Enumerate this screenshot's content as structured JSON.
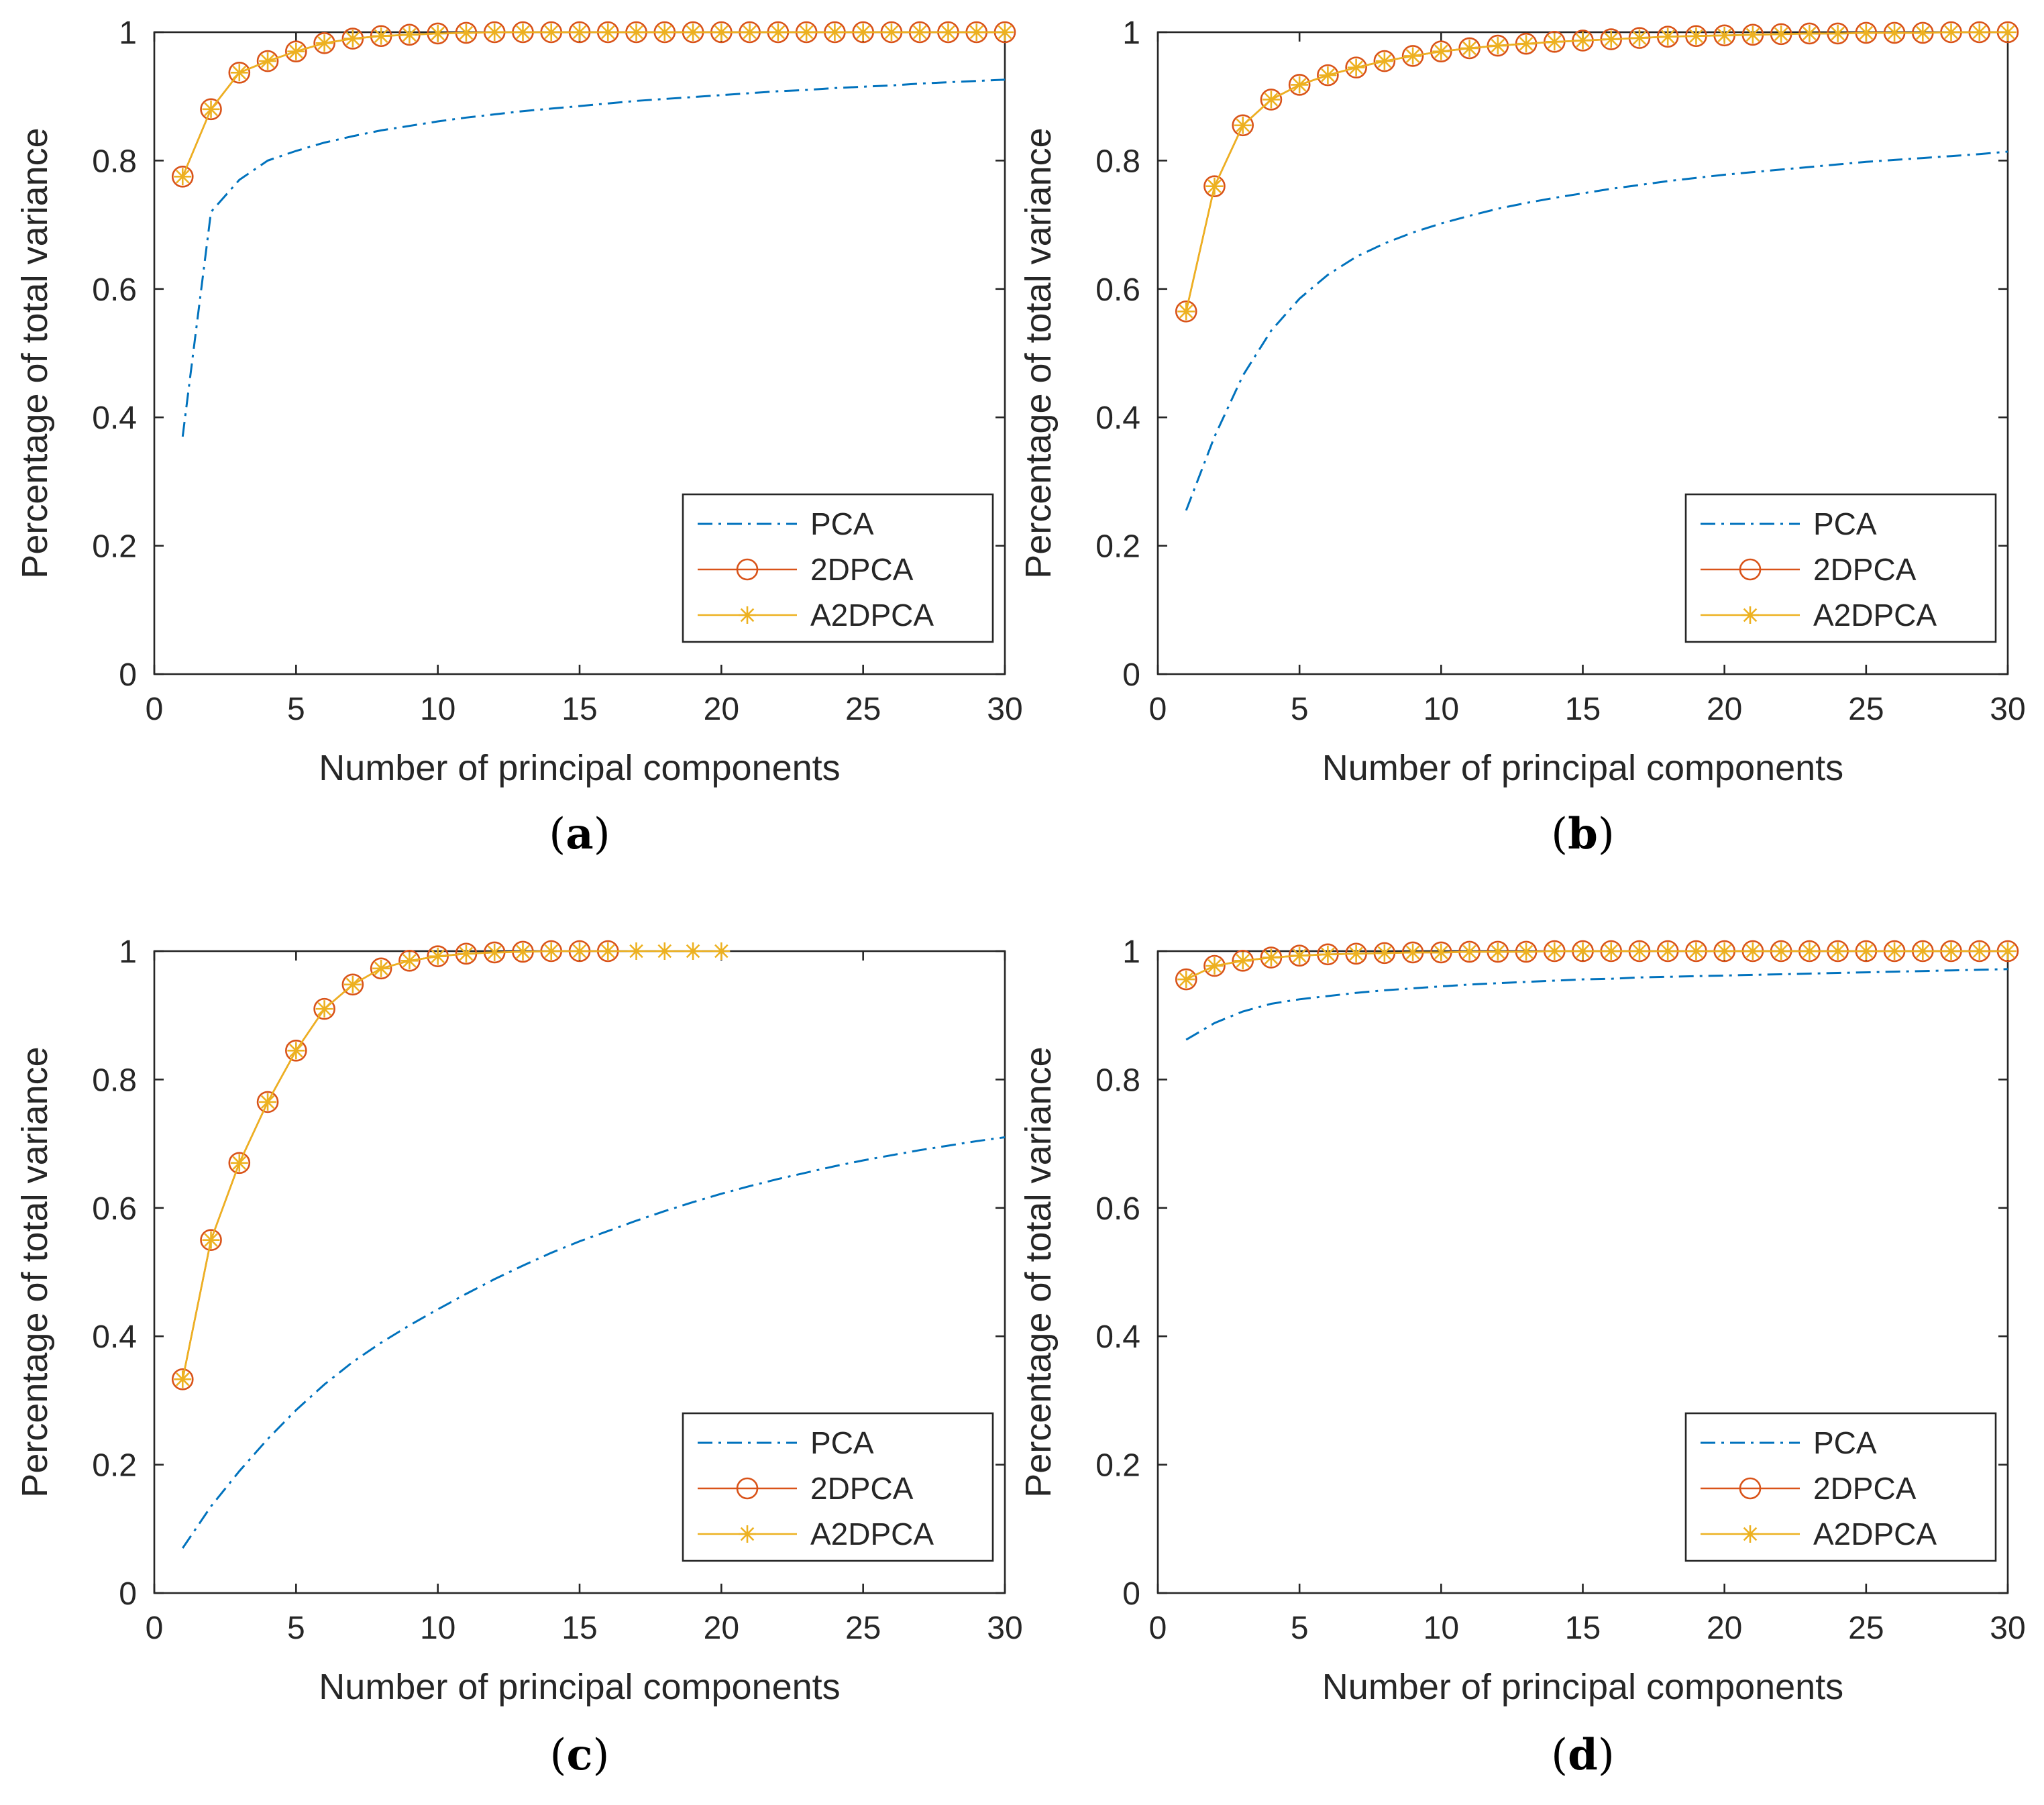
{
  "colors": {
    "pca": "#0072bd",
    "twodpca": "#d95319",
    "a2dpca": "#edb120",
    "axes": "#262626"
  },
  "legend_position": "bottom-right",
  "chart_data": [
    {
      "id": "a",
      "type": "line",
      "caption_letter": "a",
      "xlabel": "Number of principal components",
      "ylabel": "Percentage of total variance",
      "xlim": [
        0,
        30
      ],
      "ylim": [
        0,
        1
      ],
      "xticks": [
        "0",
        "5",
        "10",
        "15",
        "20",
        "25",
        "30"
      ],
      "yticks": [
        "0",
        "0.2",
        "0.4",
        "0.6",
        "0.8",
        "1"
      ],
      "legend": [
        "PCA",
        "2DPCA",
        "A2DPCA"
      ],
      "series": [
        {
          "name": "PCA",
          "style": "dash-dot",
          "x": [
            1,
            2,
            3,
            4,
            5,
            6,
            7,
            8,
            9,
            10,
            11,
            12,
            13,
            14,
            15,
            16,
            17,
            18,
            19,
            20,
            21,
            22,
            23,
            24,
            25,
            26,
            27,
            28,
            29,
            30
          ],
          "values": [
            0.37,
            0.72,
            0.77,
            0.8,
            0.815,
            0.828,
            0.838,
            0.847,
            0.854,
            0.861,
            0.867,
            0.872,
            0.877,
            0.881,
            0.885,
            0.889,
            0.893,
            0.896,
            0.899,
            0.902,
            0.905,
            0.908,
            0.91,
            0.913,
            0.915,
            0.917,
            0.92,
            0.922,
            0.924,
            0.926
          ]
        },
        {
          "name": "2DPCA",
          "style": "circle",
          "x": [
            1,
            2,
            3,
            4,
            5,
            6,
            7,
            8,
            9,
            10,
            11,
            12,
            13,
            14,
            15,
            16,
            17,
            18,
            19,
            20,
            21,
            22,
            23,
            24,
            25,
            26,
            27,
            28,
            29,
            30
          ],
          "values": [
            0.775,
            0.88,
            0.937,
            0.955,
            0.97,
            0.983,
            0.99,
            0.994,
            0.996,
            0.998,
            0.999,
            1,
            1,
            1,
            1,
            1,
            1,
            1,
            1,
            1,
            1,
            1,
            1,
            1,
            1,
            1,
            1,
            1,
            1,
            1
          ]
        },
        {
          "name": "A2DPCA",
          "style": "asterisk",
          "x": [
            1,
            2,
            3,
            4,
            5,
            6,
            7,
            8,
            9,
            10,
            11,
            12,
            13,
            14,
            15,
            16,
            17,
            18,
            19,
            20,
            21,
            22,
            23,
            24,
            25,
            26,
            27,
            28,
            29,
            30
          ],
          "values": [
            0.775,
            0.88,
            0.937,
            0.955,
            0.97,
            0.983,
            0.99,
            0.994,
            0.996,
            0.998,
            0.999,
            1,
            1,
            1,
            1,
            1,
            1,
            1,
            1,
            1,
            1,
            1,
            1,
            1,
            1,
            1,
            1,
            1,
            1,
            1
          ]
        }
      ]
    },
    {
      "id": "b",
      "type": "line",
      "caption_letter": "b",
      "xlabel": "Number of principal components",
      "ylabel": "Percentage of total variance",
      "xlim": [
        0,
        30
      ],
      "ylim": [
        0,
        1
      ],
      "xticks": [
        "0",
        "5",
        "10",
        "15",
        "20",
        "25",
        "30"
      ],
      "yticks": [
        "0",
        "0.2",
        "0.4",
        "0.6",
        "0.8",
        "1"
      ],
      "legend": [
        "PCA",
        "2DPCA",
        "A2DPCA"
      ],
      "series": [
        {
          "name": "PCA",
          "style": "dash-dot",
          "x": [
            1,
            2,
            3,
            4,
            5,
            6,
            7,
            8,
            9,
            10,
            11,
            12,
            13,
            14,
            15,
            16,
            17,
            18,
            19,
            20,
            21,
            22,
            23,
            24,
            25,
            26,
            27,
            28,
            29,
            30
          ],
          "values": [
            0.255,
            0.37,
            0.465,
            0.535,
            0.585,
            0.622,
            0.65,
            0.671,
            0.688,
            0.702,
            0.714,
            0.725,
            0.734,
            0.742,
            0.749,
            0.756,
            0.762,
            0.768,
            0.773,
            0.778,
            0.782,
            0.786,
            0.79,
            0.794,
            0.798,
            0.801,
            0.804,
            0.807,
            0.81,
            0.814
          ]
        },
        {
          "name": "2DPCA",
          "style": "circle",
          "x": [
            1,
            2,
            3,
            4,
            5,
            6,
            7,
            8,
            9,
            10,
            11,
            12,
            13,
            14,
            15,
            16,
            17,
            18,
            19,
            20,
            21,
            22,
            23,
            24,
            25,
            26,
            27,
            28,
            29,
            30
          ],
          "values": [
            0.565,
            0.76,
            0.855,
            0.895,
            0.918,
            0.933,
            0.945,
            0.955,
            0.963,
            0.97,
            0.975,
            0.979,
            0.982,
            0.985,
            0.987,
            0.989,
            0.991,
            0.993,
            0.994,
            0.995,
            0.996,
            0.997,
            0.998,
            0.998,
            0.999,
            0.999,
            0.999,
            1,
            1,
            1
          ]
        },
        {
          "name": "A2DPCA",
          "style": "asterisk",
          "x": [
            1,
            2,
            3,
            4,
            5,
            6,
            7,
            8,
            9,
            10,
            11,
            12,
            13,
            14,
            15,
            16,
            17,
            18,
            19,
            20,
            21,
            22,
            23,
            24,
            25,
            26,
            27,
            28,
            29,
            30
          ],
          "values": [
            0.565,
            0.76,
            0.855,
            0.895,
            0.918,
            0.933,
            0.945,
            0.955,
            0.963,
            0.97,
            0.975,
            0.979,
            0.982,
            0.985,
            0.987,
            0.989,
            0.991,
            0.993,
            0.994,
            0.995,
            0.996,
            0.997,
            0.998,
            0.998,
            0.999,
            0.999,
            0.999,
            1,
            1,
            1
          ]
        }
      ]
    },
    {
      "id": "c",
      "type": "line",
      "caption_letter": "c",
      "xlabel": "Number of principal components",
      "ylabel": "Percentage of total variance",
      "xlim": [
        0,
        30
      ],
      "ylim": [
        0,
        1
      ],
      "xticks": [
        "0",
        "5",
        "10",
        "15",
        "20",
        "25",
        "30"
      ],
      "yticks": [
        "0",
        "0.2",
        "0.4",
        "0.6",
        "0.8",
        "1"
      ],
      "legend": [
        "PCA",
        "2DPCA",
        "A2DPCA"
      ],
      "series": [
        {
          "name": "PCA",
          "style": "dash-dot",
          "x": [
            1,
            2,
            3,
            4,
            5,
            6,
            7,
            8,
            9,
            10,
            11,
            12,
            13,
            14,
            15,
            16,
            17,
            18,
            19,
            20,
            21,
            22,
            23,
            24,
            25,
            26,
            27,
            28,
            29,
            30
          ],
          "values": [
            0.07,
            0.135,
            0.19,
            0.24,
            0.285,
            0.325,
            0.36,
            0.39,
            0.417,
            0.442,
            0.466,
            0.489,
            0.51,
            0.53,
            0.548,
            0.564,
            0.58,
            0.595,
            0.609,
            0.622,
            0.634,
            0.645,
            0.655,
            0.665,
            0.674,
            0.682,
            0.69,
            0.697,
            0.704,
            0.71
          ]
        },
        {
          "name": "2DPCA",
          "style": "circle",
          "x": [
            1,
            2,
            3,
            4,
            5,
            6,
            7,
            8,
            9,
            10,
            11,
            12,
            13,
            14,
            15,
            16
          ],
          "values": [
            0.333,
            0.55,
            0.67,
            0.765,
            0.845,
            0.91,
            0.948,
            0.973,
            0.985,
            0.992,
            0.996,
            0.998,
            0.999,
            1,
            1,
            1
          ]
        },
        {
          "name": "A2DPCA",
          "style": "asterisk",
          "x": [
            1,
            2,
            3,
            4,
            5,
            6,
            7,
            8,
            9,
            10,
            11,
            12,
            13,
            14,
            15,
            16,
            17,
            18,
            19,
            20
          ],
          "values": [
            0.333,
            0.55,
            0.67,
            0.765,
            0.845,
            0.91,
            0.948,
            0.973,
            0.985,
            0.992,
            0.996,
            0.998,
            0.999,
            1,
            1,
            1,
            1,
            1,
            1,
            1
          ]
        }
      ]
    },
    {
      "id": "d",
      "type": "line",
      "caption_letter": "d",
      "xlabel": "Number of principal components",
      "ylabel": "Percentage of total variance",
      "xlim": [
        0,
        30
      ],
      "ylim": [
        0,
        1
      ],
      "xticks": [
        "0",
        "5",
        "10",
        "15",
        "20",
        "25",
        "30"
      ],
      "yticks": [
        "0",
        "0.2",
        "0.4",
        "0.6",
        "0.8",
        "1"
      ],
      "legend": [
        "PCA",
        "2DPCA",
        "A2DPCA"
      ],
      "series": [
        {
          "name": "PCA",
          "style": "dash-dot",
          "x": [
            1,
            2,
            3,
            4,
            5,
            6,
            7,
            8,
            9,
            10,
            11,
            12,
            13,
            14,
            15,
            16,
            17,
            18,
            19,
            20,
            21,
            22,
            23,
            24,
            25,
            26,
            27,
            28,
            29,
            30
          ],
          "values": [
            0.862,
            0.888,
            0.906,
            0.918,
            0.925,
            0.93,
            0.935,
            0.939,
            0.942,
            0.945,
            0.948,
            0.95,
            0.952,
            0.954,
            0.956,
            0.957,
            0.959,
            0.96,
            0.961,
            0.962,
            0.963,
            0.964,
            0.965,
            0.966,
            0.967,
            0.968,
            0.969,
            0.97,
            0.971,
            0.972
          ]
        },
        {
          "name": "2DPCA",
          "style": "circle",
          "x": [
            1,
            2,
            3,
            4,
            5,
            6,
            7,
            8,
            9,
            10,
            11,
            12,
            13,
            14,
            15,
            16,
            17,
            18,
            19,
            20,
            21,
            22,
            23,
            24,
            25,
            26,
            27,
            28,
            29,
            30
          ],
          "values": [
            0.956,
            0.977,
            0.985,
            0.99,
            0.993,
            0.995,
            0.996,
            0.997,
            0.998,
            0.998,
            0.999,
            0.999,
            0.999,
            1,
            1,
            1,
            1,
            1,
            1,
            1,
            1,
            1,
            1,
            1,
            1,
            1,
            1,
            1,
            1,
            1
          ]
        },
        {
          "name": "A2DPCA",
          "style": "asterisk",
          "x": [
            1,
            2,
            3,
            4,
            5,
            6,
            7,
            8,
            9,
            10,
            11,
            12,
            13,
            14,
            15,
            16,
            17,
            18,
            19,
            20,
            21,
            22,
            23,
            24,
            25,
            26,
            27,
            28,
            29,
            30
          ],
          "values": [
            0.956,
            0.977,
            0.985,
            0.99,
            0.993,
            0.995,
            0.996,
            0.997,
            0.998,
            0.998,
            0.999,
            0.999,
            0.999,
            1,
            1,
            1,
            1,
            1,
            1,
            1,
            1,
            1,
            1,
            1,
            1,
            1,
            1,
            1,
            1,
            1
          ]
        }
      ]
    }
  ]
}
